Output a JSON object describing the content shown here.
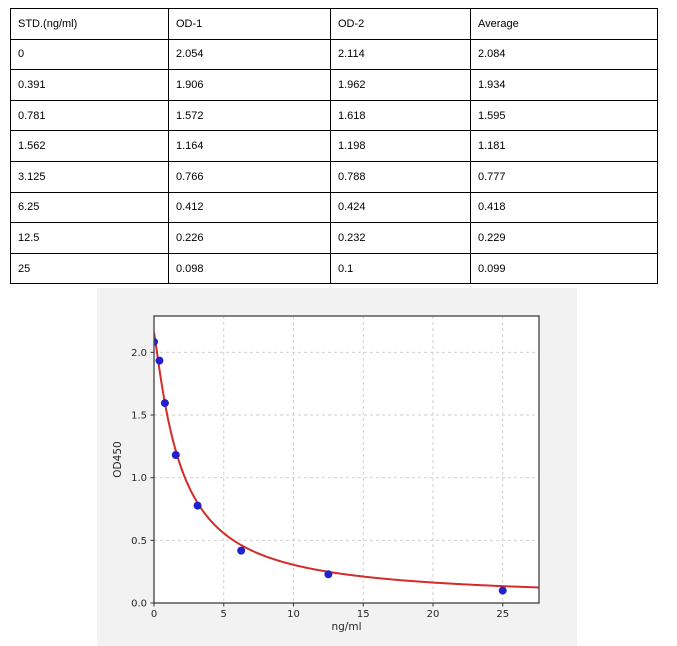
{
  "table": {
    "headers": [
      "STD.(ng/ml)",
      "OD-1",
      "OD-2",
      "Average"
    ],
    "rows": [
      [
        "0",
        "2.054",
        "2.114",
        "2.084"
      ],
      [
        "0.391",
        "1.906",
        "1.962",
        "1.934"
      ],
      [
        "0.781",
        "1.572",
        "1.618",
        "1.595"
      ],
      [
        "1.562",
        "1.164",
        "1.198",
        "1.181"
      ],
      [
        "3.125",
        "0.766",
        "0.788",
        "0.777"
      ],
      [
        "6.25",
        "0.412",
        "0.424",
        "0.418"
      ],
      [
        "12.5",
        "0.226",
        "0.232",
        "0.229"
      ],
      [
        "25",
        "0.098",
        "0.1",
        "0.099"
      ]
    ]
  },
  "chart_data": {
    "type": "scatter",
    "xlabel": "ng/ml",
    "ylabel": "OD450",
    "x": [
      0,
      0.391,
      0.781,
      1.562,
      3.125,
      6.25,
      12.5,
      25
    ],
    "y": [
      2.084,
      1.934,
      1.595,
      1.181,
      0.777,
      0.418,
      0.229,
      0.099
    ],
    "xlim": [
      0,
      27.6
    ],
    "ylim": [
      0,
      2.29
    ],
    "xticks": [
      0,
      5,
      10,
      15,
      20,
      25
    ],
    "xtick_labels": [
      "0",
      "5",
      "10",
      "15",
      "20",
      "25"
    ],
    "yticks": [
      0,
      0.5,
      1,
      1.5,
      2
    ],
    "ytick_labels": [
      "0.0",
      "0.5",
      "1.0",
      "1.5",
      "2.0"
    ],
    "grid": true,
    "legend_position": "none",
    "figure_bg": "#f2f2f2",
    "plot_bg": "#ffffff",
    "grid_color": "#cccccc",
    "spine_color": "#4d4d4d",
    "tick_color": "#333333",
    "point_color": "#2222cc",
    "curve_color": "#d42b2b",
    "fit_curve": {
      "model": "4PL",
      "a": 2.16,
      "b": 1.15,
      "c": 1.9,
      "d": 0.03
    }
  }
}
